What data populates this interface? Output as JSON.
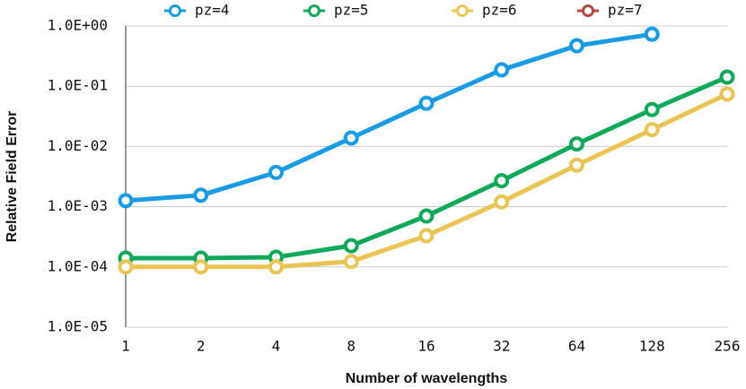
{
  "chart_data": {
    "type": "line",
    "xlabel": "Number of wavelengths",
    "ylabel": "Relative Field Error",
    "categories": [
      "1",
      "2",
      "4",
      "8",
      "16",
      "32",
      "64",
      "128",
      "256"
    ],
    "series": [
      {
        "name": "pz=4",
        "color": "#1a9be6",
        "values": [
          0.00126,
          0.00155,
          0.0037,
          0.0138,
          0.052,
          0.187,
          0.47,
          0.73,
          null
        ]
      },
      {
        "name": "pz=5",
        "color": "#10a85a",
        "values": [
          0.00014,
          0.00014,
          0.000145,
          0.000225,
          0.0007,
          0.0027,
          0.011,
          0.041,
          0.142
        ]
      },
      {
        "name": "pz=6",
        "color": "#eac555",
        "values": [
          0.0001,
          0.0001,
          0.0001,
          0.000123,
          0.00033,
          0.0012,
          0.0049,
          0.019,
          0.074
        ]
      },
      {
        "name": "pz=7",
        "color": "#b5473e",
        "values": [
          null,
          null,
          null,
          null,
          null,
          null,
          null,
          null,
          null
        ]
      }
    ],
    "log_scale": true,
    "ylim": [
      1e-05,
      1
    ],
    "yticks": [
      {
        "value": 1,
        "label": "1.0E+00"
      },
      {
        "value": 0.1,
        "label": "1.0E-01"
      },
      {
        "value": 0.01,
        "label": "1.0E-02"
      },
      {
        "value": 0.001,
        "label": "1.0E-03"
      },
      {
        "value": 0.0001,
        "label": "1.0E-04"
      },
      {
        "value": 1e-05,
        "label": "1.0E-05"
      }
    ],
    "grid": true,
    "legend": "top"
  }
}
